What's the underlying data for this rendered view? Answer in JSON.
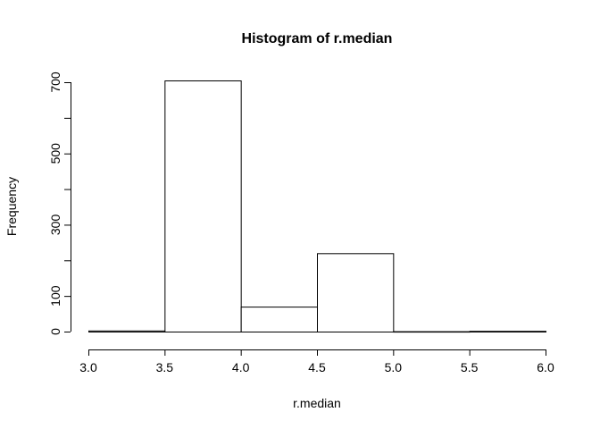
{
  "chart_data": {
    "type": "bar",
    "title": "Histogram of r.median",
    "xlabel": "r.median",
    "ylabel": "Frequency",
    "bins": [
      {
        "from": 3.0,
        "to": 3.5,
        "count": 3
      },
      {
        "from": 3.5,
        "to": 4.0,
        "count": 705
      },
      {
        "from": 4.0,
        "to": 4.5,
        "count": 70
      },
      {
        "from": 4.5,
        "to": 5.0,
        "count": 220
      },
      {
        "from": 5.0,
        "to": 5.5,
        "count": 1
      },
      {
        "from": 5.5,
        "to": 6.0,
        "count": 2
      }
    ],
    "x_ticks": [
      "3.0",
      "3.5",
      "4.0",
      "4.5",
      "5.0",
      "5.5",
      "6.0"
    ],
    "y_ticks_labeled": [
      "0",
      "100",
      "300",
      "500",
      "700"
    ],
    "y_ticks_all": [
      0,
      100,
      200,
      300,
      400,
      500,
      600,
      700
    ],
    "xlim": [
      3.0,
      6.0
    ],
    "ylim": [
      0,
      700
    ],
    "grid": false,
    "bar_fill": "#ffffff",
    "bar_stroke": "#000000"
  }
}
